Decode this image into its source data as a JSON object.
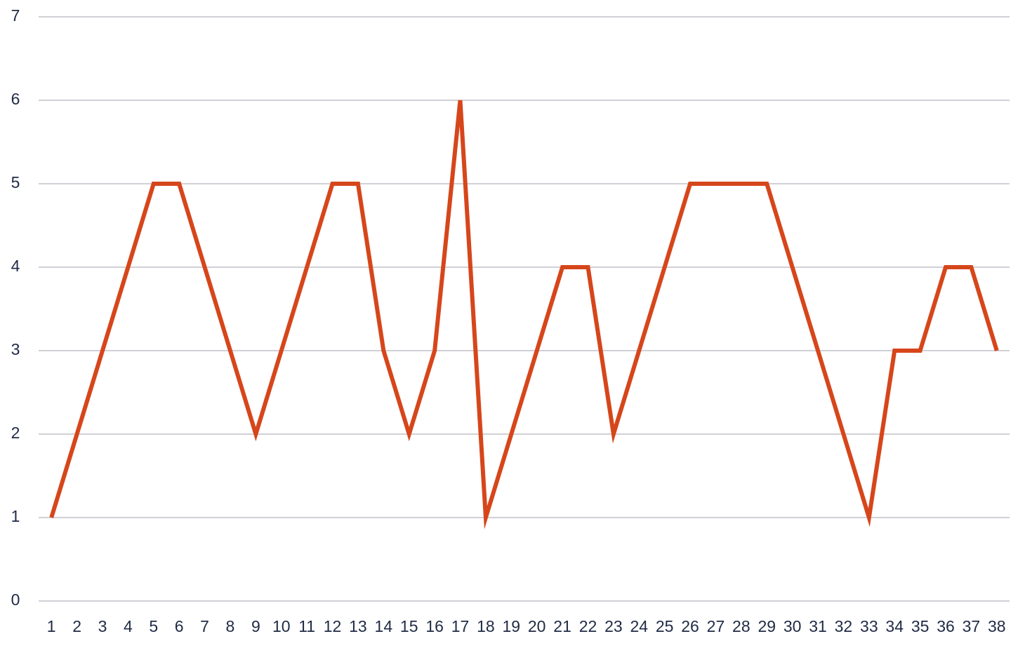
{
  "chart_data": {
    "type": "line",
    "categories": [
      1,
      2,
      3,
      4,
      5,
      6,
      7,
      8,
      9,
      10,
      11,
      12,
      13,
      14,
      15,
      16,
      17,
      18,
      19,
      20,
      21,
      22,
      23,
      24,
      25,
      26,
      27,
      28,
      29,
      30,
      31,
      32,
      33,
      34,
      35,
      36,
      37,
      38
    ],
    "values": [
      1,
      2,
      3,
      4,
      5,
      5,
      4,
      3,
      2,
      3,
      4,
      5,
      5,
      3,
      2,
      3,
      6,
      1,
      2,
      3,
      4,
      4,
      2,
      3,
      4,
      5,
      5,
      5,
      5,
      4,
      3,
      2,
      1,
      3,
      3,
      4,
      4,
      3
    ],
    "color": "#d6461b",
    "ylim": [
      0,
      7
    ],
    "yticks": [
      0,
      1,
      2,
      3,
      4,
      5,
      6,
      7
    ],
    "grid": true
  }
}
